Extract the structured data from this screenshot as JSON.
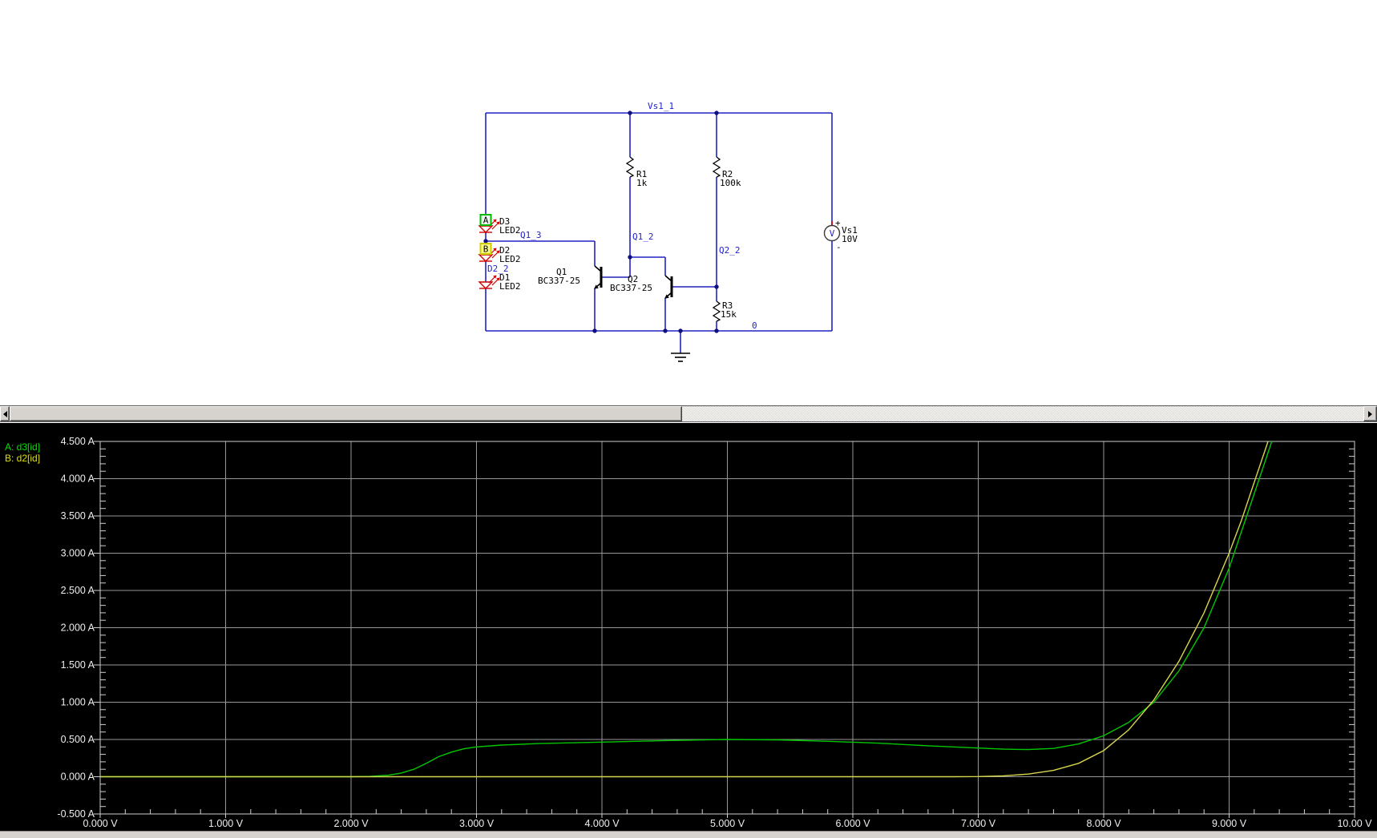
{
  "schematic": {
    "net_labels": {
      "vs1_1": "Vs1_1",
      "q1_3": "Q1_3",
      "q1_2": "Q1_2",
      "q2_2": "Q2_2",
      "d2_2": "D2_2",
      "ground": "0"
    },
    "components": {
      "r1": {
        "name": "R1",
        "value": "1k"
      },
      "r2": {
        "name": "R2",
        "value": "100k"
      },
      "r3": {
        "name": "R3",
        "value": "15k"
      },
      "d3": {
        "name": "D3",
        "value": "LED2"
      },
      "d2": {
        "name": "D2",
        "value": "LED2"
      },
      "d1": {
        "name": "D1",
        "value": "LED2"
      },
      "q1": {
        "name": "Q1",
        "value": "BC337-25"
      },
      "q2": {
        "name": "Q2",
        "value": "BC337-25"
      },
      "vs1": {
        "name": "Vs1",
        "value": "10V",
        "symbol_letter": "V",
        "plus": "+",
        "minus": "-"
      }
    },
    "probes": {
      "a": "A",
      "b": "B"
    },
    "colors": {
      "wire": "#2222c4",
      "net_label": "#2222cc",
      "led": "#cc0000",
      "probe_a_border": "#00bb00",
      "probe_b_fill": "#ffff8c"
    }
  },
  "chart_data": {
    "type": "line",
    "x_range": [
      0,
      10
    ],
    "y_range": [
      -0.5,
      4.5
    ],
    "x_major_step": 1,
    "y_major_step": 0.5,
    "x_minor_step": 0.2,
    "y_minor_step": 0.1,
    "grid": true,
    "background": "#000000",
    "x_tick_labels": [
      "0.000 V",
      "1.000 V",
      "2.000 V",
      "3.000 V",
      "4.000 V",
      "5.000 V",
      "6.000 V",
      "7.000 V",
      "8.000 V",
      "9.000 V",
      "10.00 V"
    ],
    "y_tick_labels": [
      "4.500 A",
      "4.000 A",
      "3.500 A",
      "3.000 A",
      "2.500 A",
      "2.000 A",
      "1.500 A",
      "1.000 A",
      "0.500 A",
      "0.000 A",
      "-0.500 A"
    ],
    "legend": [
      {
        "label": "A: d3[id]",
        "color": "#00e000"
      },
      {
        "label": "B: d2[id]",
        "color": "#e0e000"
      }
    ],
    "legend_position": "top-left-outside",
    "series": [
      {
        "name": "d3[id]",
        "color": "#00c800",
        "points": [
          [
            0,
            0
          ],
          [
            0.5,
            0
          ],
          [
            1,
            0
          ],
          [
            1.5,
            0
          ],
          [
            2.0,
            0
          ],
          [
            2.15,
            0.004
          ],
          [
            2.3,
            0.02
          ],
          [
            2.4,
            0.05
          ],
          [
            2.5,
            0.1
          ],
          [
            2.6,
            0.18
          ],
          [
            2.7,
            0.27
          ],
          [
            2.8,
            0.33
          ],
          [
            2.9,
            0.375
          ],
          [
            3.0,
            0.4
          ],
          [
            3.2,
            0.425
          ],
          [
            3.5,
            0.445
          ],
          [
            4.0,
            0.465
          ],
          [
            4.5,
            0.485
          ],
          [
            5.0,
            0.5
          ],
          [
            5.4,
            0.495
          ],
          [
            5.8,
            0.475
          ],
          [
            6.2,
            0.45
          ],
          [
            6.6,
            0.415
          ],
          [
            7.0,
            0.385
          ],
          [
            7.2,
            0.37
          ],
          [
            7.4,
            0.365
          ],
          [
            7.6,
            0.38
          ],
          [
            7.8,
            0.44
          ],
          [
            8.0,
            0.55
          ],
          [
            8.2,
            0.73
          ],
          [
            8.4,
            1.0
          ],
          [
            8.6,
            1.42
          ],
          [
            8.8,
            2.0
          ],
          [
            9.0,
            2.8
          ],
          [
            9.15,
            3.55
          ],
          [
            9.3,
            4.3
          ],
          [
            9.34,
            4.5
          ]
        ]
      },
      {
        "name": "d2[id]",
        "color": "#d6d64e",
        "points": [
          [
            0,
            0
          ],
          [
            1,
            0
          ],
          [
            2,
            0
          ],
          [
            3,
            0
          ],
          [
            4,
            0
          ],
          [
            5,
            0
          ],
          [
            6,
            0
          ],
          [
            6.8,
            0
          ],
          [
            7.0,
            0.002
          ],
          [
            7.2,
            0.012
          ],
          [
            7.4,
            0.035
          ],
          [
            7.6,
            0.085
          ],
          [
            7.8,
            0.18
          ],
          [
            8.0,
            0.35
          ],
          [
            8.2,
            0.63
          ],
          [
            8.4,
            1.03
          ],
          [
            8.6,
            1.55
          ],
          [
            8.8,
            2.2
          ],
          [
            9.0,
            3.0
          ],
          [
            9.1,
            3.45
          ],
          [
            9.2,
            3.95
          ],
          [
            9.3,
            4.45
          ],
          [
            9.31,
            4.5
          ]
        ]
      }
    ]
  }
}
